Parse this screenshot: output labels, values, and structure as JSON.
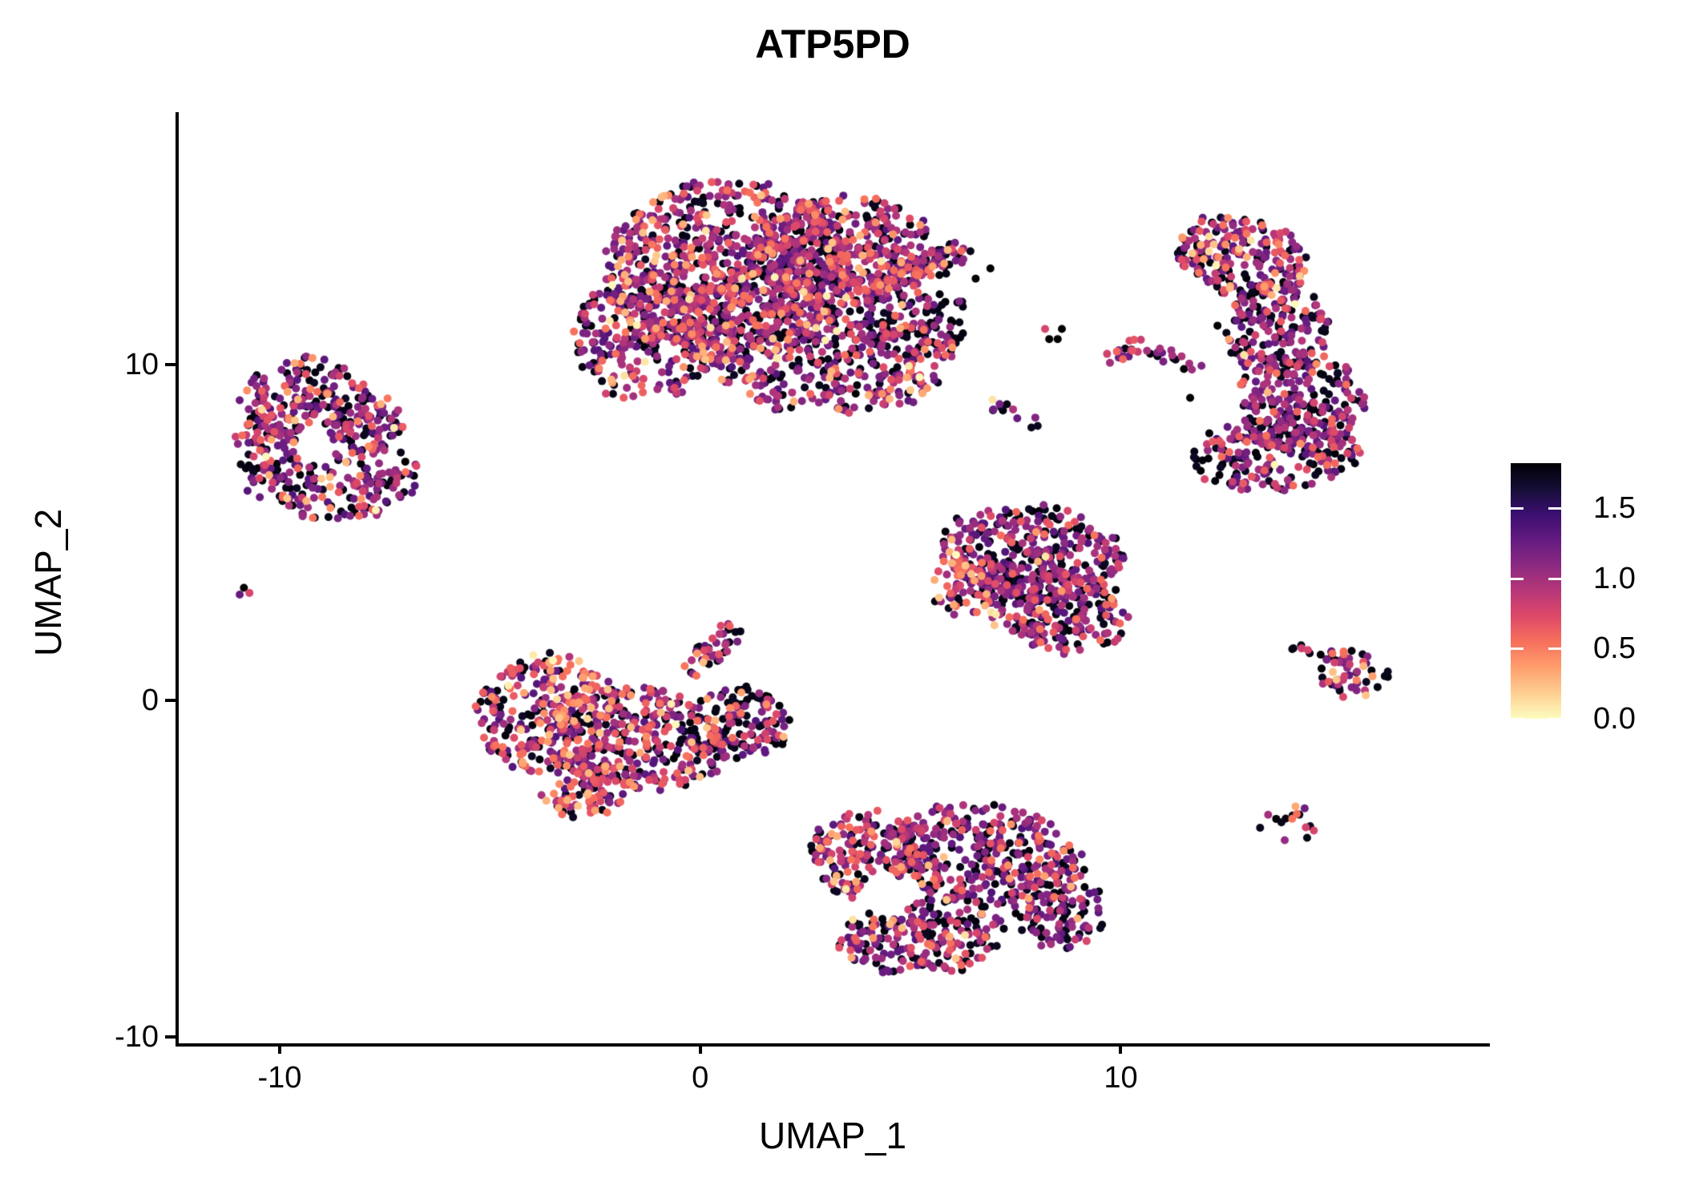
{
  "header": {
    "title": "ATP5PD"
  },
  "axes": {
    "x_title": "UMAP_1",
    "y_title": "UMAP_2",
    "x_tick_labels": [
      "-10",
      "0",
      "10"
    ],
    "y_tick_labels": [
      "-10",
      "0",
      "10"
    ]
  },
  "colorbar": {
    "tick_labels": [
      "0.0",
      "0.5",
      "1.0",
      "1.5"
    ],
    "tick_values": [
      0.0,
      0.5,
      1.0,
      1.5
    ],
    "vmin": 0.0,
    "vmax": 1.82,
    "colormap": "magma",
    "colormap_stops": [
      "#000004",
      "#140e36",
      "#3b0f70",
      "#641a80",
      "#8c2981",
      "#b73779",
      "#de4968",
      "#f7705c",
      "#fe9f6d",
      "#fecf92",
      "#fcfdbf"
    ]
  },
  "colors": {
    "background": "#ffffff",
    "axis": "#000000",
    "text": "#000000",
    "dot_zero_expression": "#000004",
    "dot_low_expression": "#7d2a84",
    "dot_mid_expression": "#e8566b",
    "dot_high_expression": "#fb9c63",
    "dot_top_expression": "#fde49e"
  },
  "chart_data": {
    "type": "scatter",
    "title": "ATP5PD",
    "xlabel": "UMAP_1",
    "ylabel": "UMAP_2",
    "xlim": [
      -12.4,
      18.7
    ],
    "ylim": [
      -10.2,
      17.5
    ],
    "x_ticks": [
      -10,
      0,
      10
    ],
    "y_ticks": [
      -10,
      0,
      10
    ],
    "grid": false,
    "legend_position": "right-colorbar",
    "point_radius_px": 5,
    "total_points_estimate": 5900,
    "expression_value_bins": {
      "zero": [
        0.0,
        0.12
      ],
      "low": [
        0.45,
        0.92
      ],
      "mid": [
        0.95,
        1.3
      ],
      "high": [
        1.35,
        1.62
      ],
      "top": [
        1.66,
        1.82
      ]
    },
    "clusters": [
      {
        "name": "top-center-large",
        "mix": {
          "zero": 0.29,
          "low": 0.47,
          "mid": 0.17,
          "high": 0.06,
          "top": 0.01
        },
        "holes": [],
        "blobs": [
          {
            "cx": 0.6,
            "cy": 12.8,
            "rx": 2.9,
            "ry": 2.7,
            "rot": 0,
            "n": 700
          },
          {
            "cx": 2.8,
            "cy": 10.8,
            "rx": 3.3,
            "ry": 2.3,
            "rot": -10,
            "n": 650
          },
          {
            "cx": -1.3,
            "cy": 10.8,
            "rx": 1.7,
            "ry": 1.9,
            "rot": 0,
            "n": 260
          },
          {
            "cx": 3.4,
            "cy": 13.4,
            "rx": 2.2,
            "ry": 1.6,
            "rot": 0,
            "n": 380
          },
          {
            "cx": 5.3,
            "cy": 12.9,
            "rx": 1.25,
            "ry": 0.4,
            "rot": 28,
            "n": 90
          },
          {
            "cx": 5.2,
            "cy": 11.2,
            "rx": 1.3,
            "ry": 1.1,
            "rot": 0,
            "n": 60,
            "mix": {
              "zero": 0.75,
              "low": 0.2,
              "mid": 0.05
            }
          }
        ]
      },
      {
        "name": "left-mid",
        "mix": {
          "zero": 0.3,
          "low": 0.46,
          "mid": 0.17,
          "high": 0.06,
          "top": 0.01
        },
        "holes": [
          {
            "cx": -9.15,
            "cy": 7.5,
            "r": 0.5
          }
        ],
        "blobs": [
          {
            "cx": -9.4,
            "cy": 8.9,
            "rx": 1.5,
            "ry": 1.35,
            "rot": 0,
            "n": 170
          },
          {
            "cx": -8.3,
            "cy": 6.5,
            "rx": 1.7,
            "ry": 1.1,
            "rot": 15,
            "n": 150
          },
          {
            "cx": -10.2,
            "cy": 7.3,
            "rx": 0.85,
            "ry": 1.4,
            "rot": 0,
            "n": 90
          },
          {
            "cx": -8.0,
            "cy": 8.3,
            "rx": 1.0,
            "ry": 0.9,
            "rot": 0,
            "n": 80
          }
        ]
      },
      {
        "name": "center-left-low",
        "mix": {
          "zero": 0.27,
          "low": 0.38,
          "mid": 0.25,
          "high": 0.09,
          "top": 0.01
        },
        "holes": [],
        "blobs": [
          {
            "cx": -3.6,
            "cy": -0.4,
            "rx": 1.7,
            "ry": 1.8,
            "rot": 0,
            "n": 300
          },
          {
            "cx": -1.4,
            "cy": -1.1,
            "rx": 2.1,
            "ry": 1.5,
            "rot": -15,
            "n": 280
          },
          {
            "cx": 0.8,
            "cy": -0.7,
            "rx": 1.4,
            "ry": 1.1,
            "rot": 0,
            "n": 150,
            "mix": {
              "zero": 0.5,
              "low": 0.3,
              "mid": 0.15,
              "high": 0.05
            }
          },
          {
            "cx": 0.3,
            "cy": 1.5,
            "rx": 1.0,
            "ry": 0.32,
            "rot": 50,
            "n": 40
          },
          {
            "cx": -2.7,
            "cy": -2.7,
            "rx": 1.1,
            "ry": 0.8,
            "rot": 20,
            "n": 90
          }
        ]
      },
      {
        "name": "center-wedge",
        "mix": {
          "zero": 0.33,
          "low": 0.53,
          "mid": 0.12,
          "high": 0.015,
          "top": 0.005
        },
        "holes": [],
        "blobs": [
          {
            "cx": 7.9,
            "cy": 4.4,
            "rx": 2.2,
            "ry": 1.4,
            "rot": -8,
            "n": 330
          },
          {
            "cx": 8.5,
            "cy": 2.7,
            "rx": 1.8,
            "ry": 1.2,
            "rot": -20,
            "n": 230
          },
          {
            "cx": 6.3,
            "cy": 3.4,
            "rx": 0.8,
            "ry": 0.9,
            "rot": 0,
            "n": 70,
            "mix": {
              "zero": 0.15,
              "low": 0.35,
              "mid": 0.38,
              "high": 0.1,
              "top": 0.02
            }
          }
        ]
      },
      {
        "name": "bottom-center",
        "mix": {
          "zero": 0.33,
          "low": 0.47,
          "mid": 0.16,
          "high": 0.035,
          "top": 0.005
        },
        "holes": [
          {
            "cx": 4.4,
            "cy": -5.8,
            "r": 0.65
          }
        ],
        "blobs": [
          {
            "cx": 4.0,
            "cy": -4.6,
            "rx": 1.4,
            "ry": 1.3,
            "rot": 0,
            "n": 200,
            "mix": {
              "zero": 0.25,
              "low": 0.35,
              "mid": 0.3,
              "high": 0.09,
              "top": 0.01
            }
          },
          {
            "cx": 6.8,
            "cy": -4.6,
            "rx": 2.3,
            "ry": 1.5,
            "rot": -12,
            "n": 330
          },
          {
            "cx": 5.3,
            "cy": -7.0,
            "rx": 2.0,
            "ry": 1.2,
            "rot": 8,
            "n": 230
          },
          {
            "cx": 8.6,
            "cy": -6.2,
            "rx": 1.1,
            "ry": 1.2,
            "rot": 0,
            "n": 110
          }
        ]
      },
      {
        "name": "right-crescent",
        "mix": {
          "zero": 0.35,
          "low": 0.5,
          "mid": 0.13,
          "high": 0.015,
          "top": 0.005
        },
        "holes": [],
        "blobs": [
          {
            "cx": 12.9,
            "cy": 13.2,
            "rx": 1.6,
            "ry": 1.15,
            "rot": -20,
            "n": 200,
            "mix": {
              "zero": 0.28,
              "low": 0.42,
              "mid": 0.2,
              "high": 0.08,
              "top": 0.02
            }
          },
          {
            "cx": 13.7,
            "cy": 11.0,
            "rx": 1.25,
            "ry": 1.5,
            "rot": 0,
            "n": 180
          },
          {
            "cx": 14.3,
            "cy": 8.9,
            "rx": 1.5,
            "ry": 1.6,
            "rot": 0,
            "n": 220
          },
          {
            "cx": 13.7,
            "cy": 7.3,
            "rx": 2.0,
            "ry": 1.1,
            "rot": 5,
            "n": 200
          }
        ]
      },
      {
        "name": "small-streak-left-arm",
        "mix": {
          "zero": 0.2,
          "low": 0.3,
          "mid": 0.5
        },
        "holes": [],
        "blobs": [
          {
            "cx": 9.95,
            "cy": 10.3,
            "rx": 0.75,
            "ry": 0.22,
            "rot": 35,
            "n": 16
          }
        ]
      },
      {
        "name": "small-streak-right-arm",
        "mix": {
          "zero": 0.45,
          "low": 0.55
        },
        "holes": [],
        "blobs": [
          {
            "cx": 11.2,
            "cy": 10.2,
            "rx": 0.85,
            "ry": 0.22,
            "rot": -28,
            "n": 16
          }
        ]
      },
      {
        "name": "small-streak-lower",
        "mix": {
          "zero": 0.5,
          "low": 0.5
        },
        "holes": [],
        "blobs": [
          {
            "cx": 7.4,
            "cy": 8.6,
            "rx": 0.8,
            "ry": 0.25,
            "rot": -35,
            "n": 11
          }
        ]
      },
      {
        "name": "right-small-arrow",
        "mix": {
          "zero": 0.35,
          "low": 0.35,
          "mid": 0.2,
          "high": 0.1
        },
        "holes": [],
        "blobs": [
          {
            "cx": 15.5,
            "cy": 0.7,
            "rx": 0.85,
            "ry": 0.8,
            "rot": 0,
            "n": 45
          },
          {
            "cx": 14.7,
            "cy": 1.35,
            "rx": 0.75,
            "ry": 0.2,
            "rot": -20,
            "n": 14,
            "mix": {
              "zero": 0.5,
              "low": 0.3,
              "mid": 0.2
            }
          }
        ]
      },
      {
        "name": "right-small-round",
        "mix": {
          "zero": 0.45,
          "low": 0.2,
          "mid": 0.25,
          "high": 0.1
        },
        "holes": [],
        "blobs": [
          {
            "cx": 14.0,
            "cy": -3.7,
            "rx": 0.7,
            "ry": 0.62,
            "rot": 0,
            "n": 16
          }
        ]
      }
    ],
    "singletons": [
      {
        "x": -10.85,
        "y": 3.35,
        "v": 0
      },
      {
        "x": -10.95,
        "y": 3.15,
        "v": 0.55
      },
      {
        "x": -10.72,
        "y": 3.2,
        "v": 1.05
      },
      {
        "x": 6.55,
        "y": 12.55,
        "v": 0
      },
      {
        "x": 6.9,
        "y": 12.85,
        "v": 0
      },
      {
        "x": 5.0,
        "y": 9.85,
        "v": 0
      },
      {
        "x": 5.6,
        "y": 10.6,
        "v": 0
      },
      {
        "x": 12.3,
        "y": 11.15,
        "v": 0
      },
      {
        "x": 11.65,
        "y": 9.0,
        "v": 0
      },
      {
        "x": 11.9,
        "y": 13.55,
        "v": 1.5
      },
      {
        "x": 12.1,
        "y": 13.8,
        "v": 1.7
      },
      {
        "x": 11.75,
        "y": 13.3,
        "v": 1.15
      },
      {
        "x": 8.2,
        "y": 11.05,
        "v": 1.05
      },
      {
        "x": 8.5,
        "y": 10.75,
        "v": 0
      },
      {
        "x": 8.3,
        "y": 10.75,
        "v": 0
      },
      {
        "x": 8.6,
        "y": 11.05,
        "v": 0
      },
      {
        "x": 6.95,
        "y": 8.95,
        "v": 1.72
      },
      {
        "x": 14.3,
        "y": 1.55,
        "v": 1.0
      },
      {
        "x": 14.45,
        "y": 1.5,
        "v": 1.05
      }
    ]
  }
}
